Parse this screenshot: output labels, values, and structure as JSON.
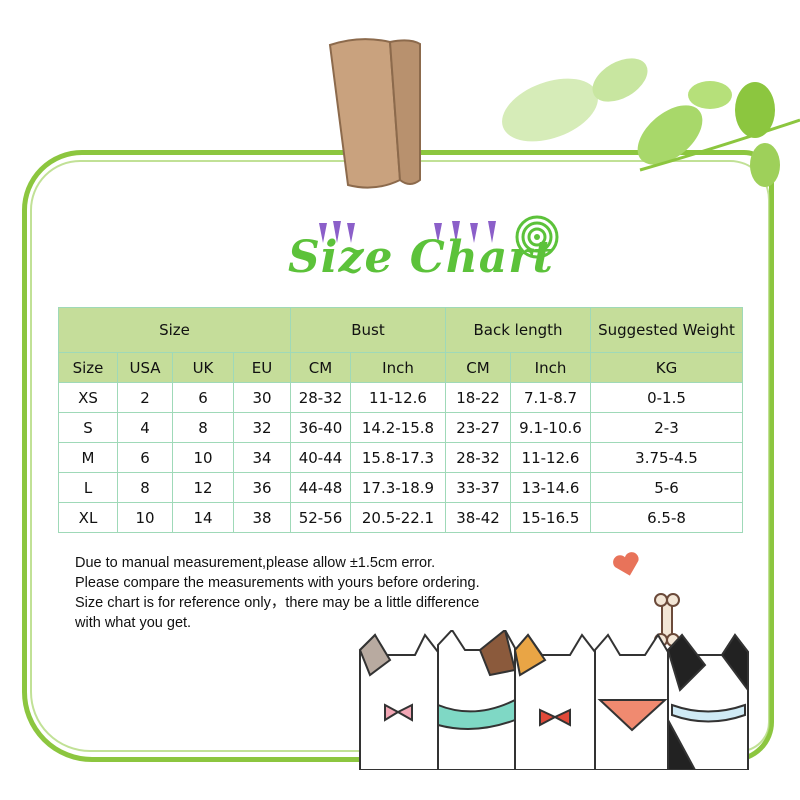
{
  "title": "Size Chart",
  "colors": {
    "accent": "#5cc23a",
    "header_bg": "#c5dd9a",
    "frame": "#8cc63f",
    "grid": "#9fd9b8"
  },
  "table": {
    "group_headers": [
      "Size",
      "Bust",
      "Back length",
      "Suggested Weight"
    ],
    "sub_headers": [
      "Size",
      "USA",
      "UK",
      "EU",
      "CM",
      "Inch",
      "CM",
      "Inch",
      "KG"
    ],
    "rows": [
      [
        "XS",
        "2",
        "6",
        "30",
        "28-32",
        "11-12.6",
        "18-22",
        "7.1-8.7",
        "0-1.5"
      ],
      [
        "S",
        "4",
        "8",
        "32",
        "36-40",
        "14.2-15.8",
        "23-27",
        "9.1-10.6",
        "2-3"
      ],
      [
        "M",
        "6",
        "10",
        "34",
        "40-44",
        "15.8-17.3",
        "28-32",
        "11-12.6",
        "3.75-4.5"
      ],
      [
        "L",
        "8",
        "12",
        "36",
        "44-48",
        "17.3-18.9",
        "33-37",
        "13-14.6",
        "5-6"
      ],
      [
        "XL",
        "10",
        "14",
        "38",
        "52-56",
        "20.5-22.1",
        "38-42",
        "15-16.5",
        "6.5-8"
      ]
    ]
  },
  "notes": [
    "Due to manual measurement,please allow ±1.5cm error.",
    "Please compare the measurements with yours before ordering.",
    "Size chart is for reference only，there may be a little difference",
    "with what you get."
  ],
  "decorations": [
    "clothespin",
    "leaves",
    "hearts",
    "spiral",
    "bone",
    "cats"
  ]
}
